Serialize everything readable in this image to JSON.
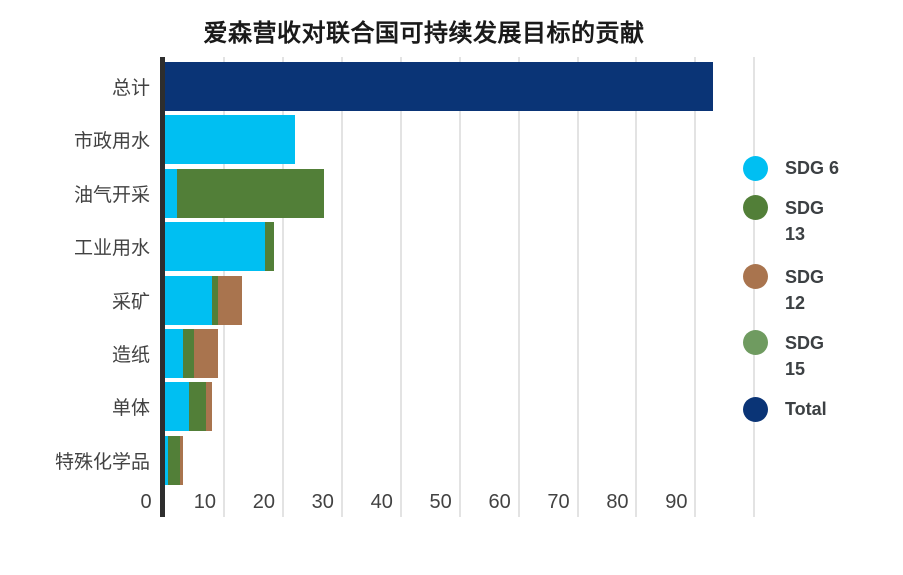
{
  "page": {
    "background": "#ffffff"
  },
  "chart_data": {
    "type": "bar",
    "orientation": "horizontal",
    "title": "爱森营收对联合国可持续发展目标的贡献",
    "categories": [
      "总计",
      "市政用水",
      "油气开采",
      "工业用水",
      "采矿",
      "造纸",
      "单体",
      "特殊化学品"
    ],
    "series": [
      {
        "name": "SDG 6",
        "color": "#00bff2",
        "legend_lines": [
          "SDG 6"
        ],
        "values": [
          0,
          22,
          2,
          17,
          8,
          3,
          4,
          0.5
        ]
      },
      {
        "name": "SDG 13",
        "color": "#527f38",
        "legend_lines": [
          "SDG",
          "13"
        ],
        "values": [
          0,
          0,
          25,
          1.5,
          1,
          2,
          3,
          2
        ]
      },
      {
        "name": "SDG 12",
        "color": "#a9744e",
        "legend_lines": [
          "SDG",
          "12"
        ],
        "values": [
          0,
          0,
          0,
          0,
          4,
          4,
          1,
          0.5
        ]
      },
      {
        "name": "SDG 15",
        "color": "#6f9b60",
        "legend_lines": [
          "SDG",
          "15"
        ],
        "values": [
          0,
          0,
          0,
          0,
          0,
          0,
          0,
          0
        ]
      },
      {
        "name": "Total",
        "color": "#0a3476",
        "legend_lines": [
          "Total"
        ],
        "values": [
          93,
          0,
          0,
          0,
          0,
          0,
          0,
          0
        ]
      }
    ],
    "x_ticks": [
      0,
      10,
      20,
      30,
      40,
      50,
      60,
      70,
      80,
      90
    ],
    "xlim": [
      0,
      100
    ],
    "grid": true,
    "legend_position": "right",
    "axis_color": "#2e2e2e",
    "gridline_color": "#e3e3e3",
    "label_color": "#424242",
    "title_color": "#1a1a1a"
  }
}
